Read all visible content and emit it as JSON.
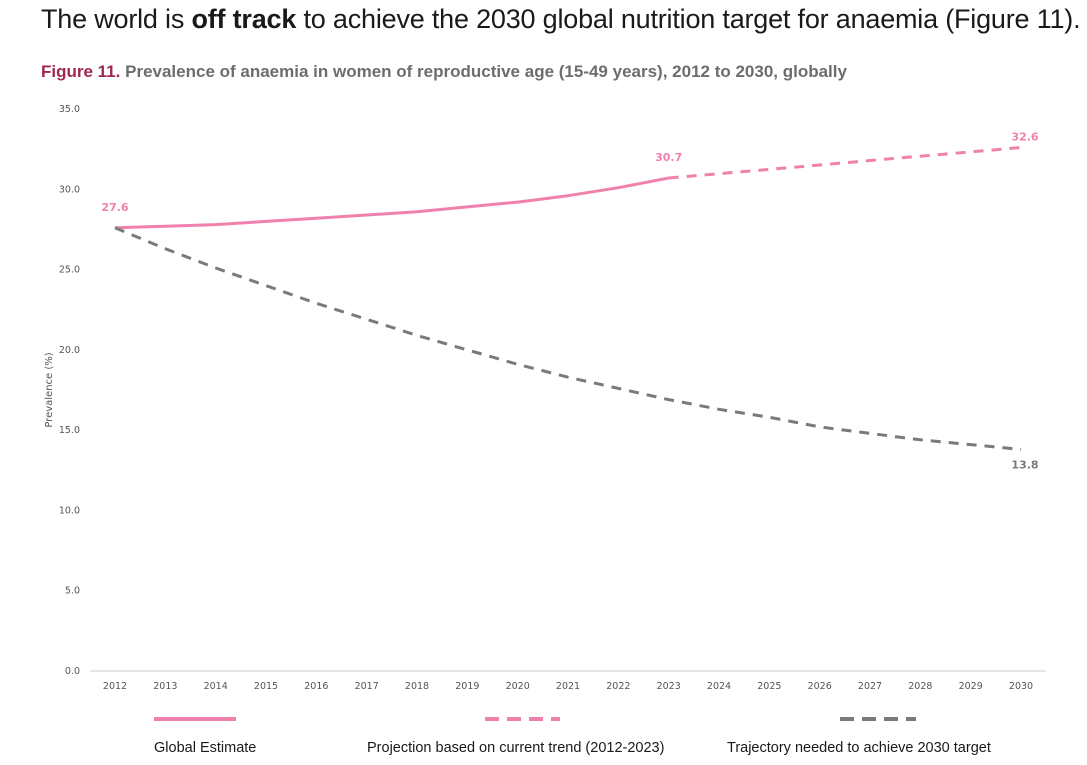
{
  "headline": {
    "prefix": "The world is ",
    "bold": "off track",
    "suffix": " to achieve the 2030 global nutrition target for anaemia (Figure 11)."
  },
  "figure": {
    "number": "Figure 11.",
    "title": "Prevalence of anaemia in women of reproductive age (15-49 years), 2012 to 2030, globally"
  },
  "colors": {
    "pink": "#f081ac",
    "gray": "#7a7a7a",
    "axis": "#cccccc"
  },
  "chart_data": {
    "type": "line",
    "ylabel": "Prevalence (%)",
    "xlabel": "",
    "ylim": [
      0,
      35
    ],
    "yticks": [
      "0.0",
      "5.0",
      "10.0",
      "15.0",
      "20.0",
      "25.0",
      "30.0",
      "35.0"
    ],
    "x": [
      2012,
      2013,
      2014,
      2015,
      2016,
      2017,
      2018,
      2019,
      2020,
      2021,
      2022,
      2023,
      2024,
      2025,
      2026,
      2027,
      2028,
      2029,
      2030
    ],
    "grid": false,
    "legend_position": "bottom",
    "series": [
      {
        "name": "Global Estimate",
        "style": "solid",
        "color": "#f081ac",
        "x": [
          2012,
          2013,
          2014,
          2015,
          2016,
          2017,
          2018,
          2019,
          2020,
          2021,
          2022,
          2023
        ],
        "values": [
          27.6,
          27.7,
          27.8,
          28.0,
          28.2,
          28.4,
          28.6,
          28.9,
          29.2,
          29.6,
          30.1,
          30.7
        ]
      },
      {
        "name": "Projection based on current trend (2012-2023)",
        "style": "dashed",
        "color": "#f081ac",
        "x": [
          2023,
          2024,
          2025,
          2026,
          2027,
          2028,
          2029,
          2030
        ],
        "values": [
          30.7,
          30.97,
          31.24,
          31.51,
          31.79,
          32.06,
          32.33,
          32.6
        ]
      },
      {
        "name": "Trajectory needed to achieve 2030 target",
        "style": "dashed",
        "color": "#7a7a7a",
        "x": [
          2012,
          2013,
          2014,
          2015,
          2016,
          2017,
          2018,
          2019,
          2020,
          2021,
          2022,
          2023,
          2024,
          2025,
          2026,
          2027,
          2028,
          2029,
          2030
        ],
        "values": [
          27.6,
          26.3,
          25.1,
          24.0,
          22.9,
          21.9,
          20.9,
          20.0,
          19.1,
          18.3,
          17.6,
          16.9,
          16.3,
          15.8,
          15.2,
          14.8,
          14.4,
          14.1,
          13.8
        ]
      }
    ],
    "data_labels": [
      {
        "x": 2012,
        "y": 27.6,
        "text": "27.6",
        "color": "#f081ac",
        "pos": "above"
      },
      {
        "x": 2023,
        "y": 30.7,
        "text": "30.7",
        "color": "#f081ac",
        "pos": "above"
      },
      {
        "x": 2030,
        "y": 32.6,
        "text": "32.6",
        "color": "#f081ac",
        "pos": "above"
      },
      {
        "x": 2030,
        "y": 13.8,
        "text": "13.8",
        "color": "#7a7a7a",
        "pos": "below"
      }
    ]
  },
  "legend": [
    {
      "label": "Global Estimate",
      "style": "solid",
      "color": "#f081ac"
    },
    {
      "label": "Projection based on current trend (2012-2023)",
      "style": "dashed",
      "color": "#f081ac"
    },
    {
      "label": "Trajectory needed to achieve 2030 target",
      "style": "dashed",
      "color": "#7a7a7a"
    }
  ]
}
